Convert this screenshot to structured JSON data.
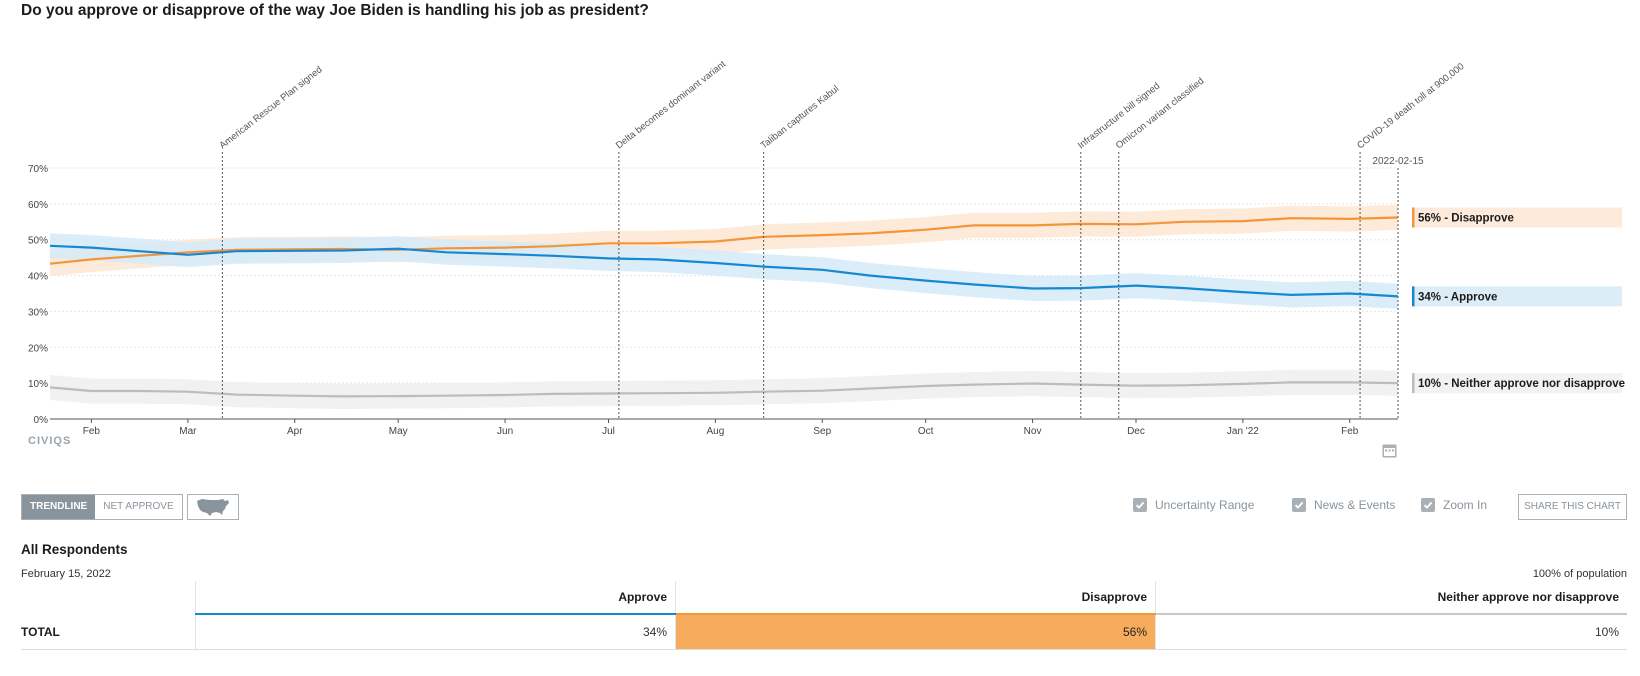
{
  "question": "Do you approve or disapprove of the way Joe Biden is handling his job as president?",
  "logo_text": "CIVIQS",
  "colors": {
    "approve": "#1688d3",
    "disapprove": "#f5953b",
    "neither": "#bcbcbc"
  },
  "chart_data": {
    "type": "line",
    "title": "Do you approve or disapprove of the way Joe Biden is handling his job as president?",
    "x_range": [
      "2021-01-20",
      "2022-02-15"
    ],
    "ylim": [
      0,
      70
    ],
    "y_ticks": [
      "0%",
      "10%",
      "20%",
      "30%",
      "40%",
      "50%",
      "60%",
      "70%"
    ],
    "y_tick_values": [
      0,
      10,
      20,
      30,
      40,
      50,
      60,
      70
    ],
    "x_tick_labels": [
      "Feb",
      "Mar",
      "Apr",
      "May",
      "Jun",
      "Jul",
      "Aug",
      "Sep",
      "Oct",
      "Nov",
      "Dec",
      "Jan '22",
      "Feb"
    ],
    "x_tick_dates": [
      "2021-02-01",
      "2021-03-01",
      "2021-04-01",
      "2021-05-01",
      "2021-06-01",
      "2021-07-01",
      "2021-08-01",
      "2021-09-01",
      "2021-10-01",
      "2021-11-01",
      "2021-12-01",
      "2022-01-01",
      "2022-02-01"
    ],
    "grid": true,
    "uncertainty_band": true,
    "current_date_label": "2022-02-15",
    "x": [
      "2021-01-20",
      "2021-02-01",
      "2021-02-15",
      "2021-03-01",
      "2021-03-15",
      "2021-04-01",
      "2021-04-15",
      "2021-05-01",
      "2021-05-15",
      "2021-06-01",
      "2021-06-15",
      "2021-07-01",
      "2021-07-15",
      "2021-08-01",
      "2021-08-15",
      "2021-09-01",
      "2021-09-15",
      "2021-10-01",
      "2021-10-15",
      "2021-11-01",
      "2021-11-15",
      "2021-12-01",
      "2021-12-15",
      "2022-01-01",
      "2022-01-15",
      "2022-02-01",
      "2022-02-15"
    ],
    "series": [
      {
        "name": "Disapprove",
        "end_label": "56% - Disapprove",
        "color": "#f5953b",
        "values": [
          43.3,
          44.5,
          45.5,
          46.5,
          47.2,
          47.3,
          47.4,
          47.2,
          47.6,
          47.8,
          48.2,
          49.0,
          49.0,
          49.5,
          50.8,
          51.3,
          51.8,
          52.8,
          54.0,
          54.0,
          54.4,
          54.3,
          55.0,
          55.2,
          56.0,
          55.8,
          56.2
        ]
      },
      {
        "name": "Approve",
        "end_label": "34% - Approve",
        "color": "#1688d3",
        "values": [
          48.3,
          47.8,
          46.8,
          45.8,
          46.8,
          46.9,
          47.0,
          47.5,
          46.5,
          46.0,
          45.5,
          44.8,
          44.5,
          43.5,
          42.5,
          41.6,
          40.0,
          38.6,
          37.5,
          36.4,
          36.5,
          37.2,
          36.5,
          35.4,
          34.6,
          35.0,
          34.2
        ]
      },
      {
        "name": "Neither approve nor disapprove",
        "end_label": "10% - Neither approve nor disapprove",
        "color": "#bcbcbc",
        "values": [
          8.8,
          7.8,
          7.8,
          7.6,
          6.8,
          6.5,
          6.3,
          6.4,
          6.5,
          6.7,
          7.0,
          7.1,
          7.2,
          7.3,
          7.6,
          7.9,
          8.5,
          9.2,
          9.6,
          9.9,
          9.6,
          9.3,
          9.4,
          9.8,
          10.2,
          10.2,
          10.0
        ]
      }
    ],
    "annotations": [
      {
        "date": "2021-03-11",
        "label": "American Rescue Plan signed"
      },
      {
        "date": "2021-07-04",
        "label": "Delta becomes dominant variant"
      },
      {
        "date": "2021-08-15",
        "label": "Taliban captures Kabul"
      },
      {
        "date": "2021-11-15",
        "label": "Infrastructure bill signed"
      },
      {
        "date": "2021-11-26",
        "label": "Omicron variant classified"
      },
      {
        "date": "2022-02-04",
        "label": "COVID-19 death toll at 900,000"
      }
    ]
  },
  "controls": {
    "trendline_label": "TRENDLINE",
    "net_approve_label": "NET APPROVE",
    "map_icon": "us-map-icon",
    "uncertainty_label": "Uncertainty Range",
    "news_label": "News & Events",
    "zoom_label": "Zoom In",
    "share_label": "SHARE THIS CHART",
    "uncertainty_checked": true,
    "news_checked": true,
    "zoom_checked": true
  },
  "results": {
    "title": "All Respondents",
    "date": "February 15, 2022",
    "population": "100% of population",
    "headers": [
      "Approve",
      "Disapprove",
      "Neither approve nor disapprove"
    ],
    "row_label": "TOTAL",
    "values": [
      "34%",
      "56%",
      "10%"
    ]
  }
}
